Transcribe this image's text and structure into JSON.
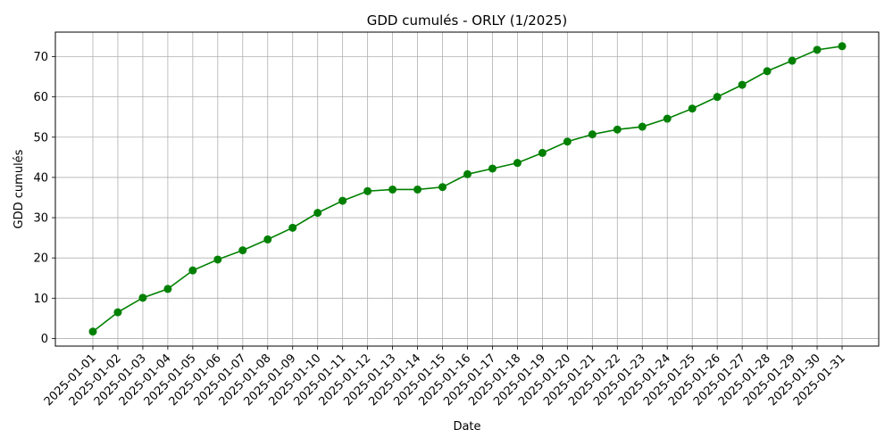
{
  "chart_data": {
    "type": "line",
    "title": "GDD cumulés - ORLY (1/2025)",
    "xlabel": "Date",
    "ylabel": "GDD cumulés",
    "x": [
      "2025-01-01",
      "2025-01-02",
      "2025-01-03",
      "2025-01-04",
      "2025-01-05",
      "2025-01-06",
      "2025-01-07",
      "2025-01-08",
      "2025-01-09",
      "2025-01-10",
      "2025-01-11",
      "2025-01-12",
      "2025-01-13",
      "2025-01-14",
      "2025-01-15",
      "2025-01-16",
      "2025-01-17",
      "2025-01-18",
      "2025-01-19",
      "2025-01-20",
      "2025-01-21",
      "2025-01-22",
      "2025-01-23",
      "2025-01-24",
      "2025-01-25",
      "2025-01-26",
      "2025-01-27",
      "2025-01-28",
      "2025-01-29",
      "2025-01-30",
      "2025-01-31"
    ],
    "series": [
      {
        "color": "#008000",
        "marker": "circle",
        "values": [
          1.7,
          6.5,
          10.1,
          12.3,
          16.9,
          19.6,
          21.9,
          24.6,
          27.5,
          31.2,
          34.2,
          36.6,
          37.0,
          37.0,
          37.6,
          40.8,
          42.2,
          43.6,
          46.1,
          48.9,
          50.7,
          51.9,
          52.6,
          54.6,
          57.1,
          60.0,
          63.0,
          66.4,
          69.0,
          71.7,
          72.6
        ]
      }
    ],
    "yticks": [
      0,
      10,
      20,
      30,
      40,
      50,
      60,
      70
    ],
    "ylim": [
      -1.9,
      76.1
    ],
    "grid": true,
    "legend": "none"
  }
}
